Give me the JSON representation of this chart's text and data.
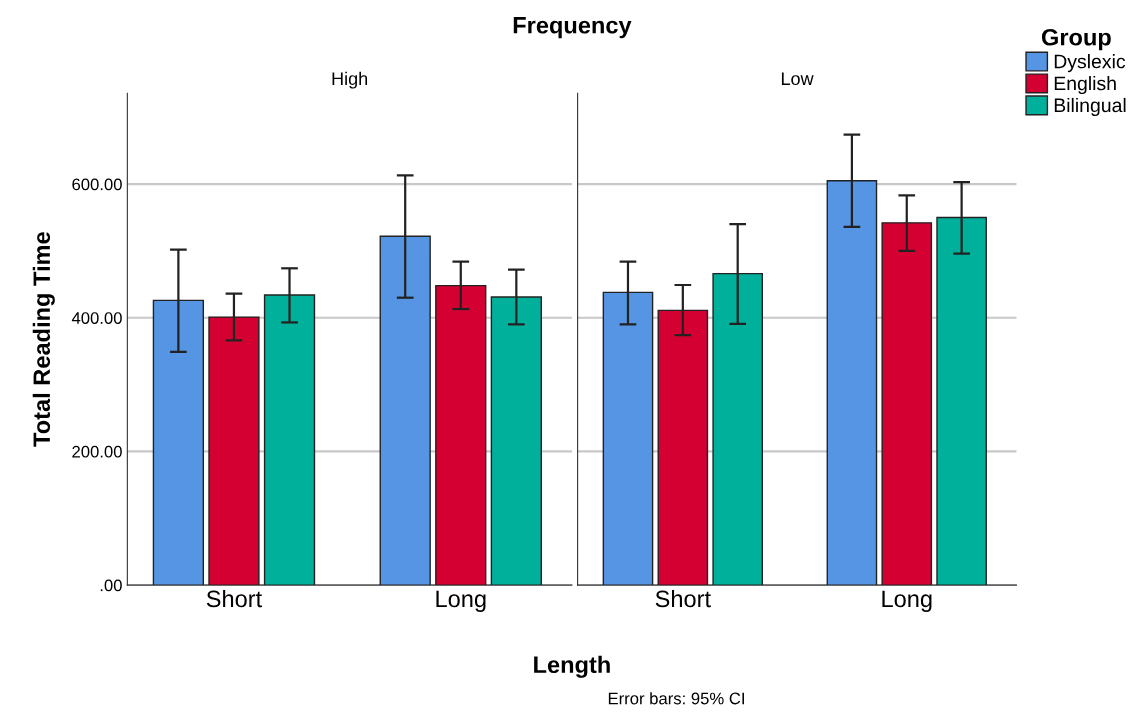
{
  "chart_data": [
    {
      "type": "bar",
      "title": "High",
      "xlabel": "Length",
      "ylabel": "Total Reading Time",
      "legend_title": "Group",
      "annotations": [
        "Frequency",
        "Error bars: 95% CI"
      ],
      "categories": [
        "Short",
        "Long"
      ],
      "series": [
        {
          "name": "Dyslexic",
          "color": "#5595e3",
          "values": [
            426,
            522
          ],
          "errors": [
            [
              349,
              502
            ],
            [
              430,
              613
            ]
          ]
        },
        {
          "name": "English",
          "color": "#d50032",
          "values": [
            401,
            448
          ],
          "errors": [
            [
              366,
              436
            ],
            [
              413,
              484
            ]
          ]
        },
        {
          "name": "Bilingual",
          "color": "#00b09b",
          "values": [
            434,
            431
          ],
          "errors": [
            [
              393,
              474
            ],
            [
              390,
              472
            ]
          ]
        }
      ],
      "ylim": [
        0,
        736
      ],
      "yticks": [
        {
          "value": 0,
          "label": ".00"
        },
        {
          "value": 200,
          "label": "200.00"
        },
        {
          "value": 400,
          "label": "400.00"
        },
        {
          "value": 600,
          "label": "600.00"
        }
      ],
      "grid": "y",
      "legend": "top right"
    },
    {
      "type": "bar",
      "title": "Low",
      "categories": [
        "Short",
        "Long"
      ],
      "series": [
        {
          "color": "#5595e3",
          "values": [
            438,
            605
          ],
          "errors": [
            [
              390,
              484
            ],
            [
              536,
              674
            ]
          ]
        },
        {
          "color": "#d50032",
          "values": [
            411,
            542
          ],
          "errors": [
            [
              374,
              449
            ],
            [
              500,
              583
            ]
          ]
        },
        {
          "color": "#00b09b",
          "values": [
            466,
            550
          ],
          "errors": [
            [
              391,
              540
            ],
            [
              496,
              603
            ]
          ]
        }
      ],
      "ylim": [
        0,
        736
      ],
      "yticks": [
        {
          "value": 0,
          "label": null
        },
        {
          "value": 200,
          "label": null
        },
        {
          "value": 400,
          "label": null
        },
        {
          "value": 600,
          "label": null
        }
      ],
      "grid": "y",
      "tick_labels": "x"
    }
  ]
}
